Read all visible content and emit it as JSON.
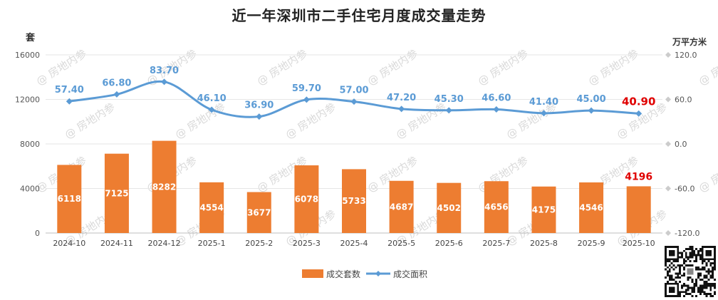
{
  "chart_data": {
    "type": "bar+line",
    "title": "近一年深圳市二手住宅月度成交量走势",
    "categories": [
      "2024-10",
      "2024-11",
      "2024-12",
      "2025-1",
      "2025-2",
      "2025-3",
      "2025-4",
      "2025-5",
      "2025-6",
      "2025-7",
      "2025-8",
      "2025-9",
      "2025-10"
    ],
    "left_axis": {
      "label": "套",
      "ticks": [
        "0",
        "4000",
        "8000",
        "12000",
        "16000"
      ],
      "range": [
        0,
        16000
      ]
    },
    "right_axis": {
      "label": "万平方米",
      "ticks": [
        "-120.0",
        "-60.0",
        "0.0",
        "60.0",
        "120.0"
      ],
      "range": [
        -120,
        120
      ]
    },
    "series": [
      {
        "name": "成交套数",
        "type": "bar",
        "axis": "left",
        "color": "#ED7D31",
        "values": [
          6118,
          7125,
          8282,
          4554,
          3677,
          6078,
          5733,
          4687,
          4502,
          4656,
          4175,
          4546,
          4196
        ],
        "labels": [
          "6118",
          "7125",
          "8282",
          "4554",
          "3677",
          "6078",
          "5733",
          "4687",
          "4502",
          "4656",
          "4175",
          "4546",
          "4196"
        ]
      },
      {
        "name": "成交面积",
        "type": "line",
        "axis": "right",
        "color": "#5B9BD5",
        "values": [
          57.4,
          66.8,
          83.7,
          46.1,
          36.9,
          59.7,
          57.0,
          47.2,
          45.3,
          46.6,
          41.4,
          45.0,
          40.9
        ],
        "labels": [
          "57.40",
          "66.80",
          "83.70",
          "46.10",
          "36.90",
          "59.70",
          "57.00",
          "47.20",
          "45.30",
          "46.60",
          "41.40",
          "45.00",
          "40.90"
        ]
      }
    ],
    "highlight_color": "#E00000",
    "grid": true,
    "legend_position": "bottom"
  },
  "watermark": "房地内参"
}
